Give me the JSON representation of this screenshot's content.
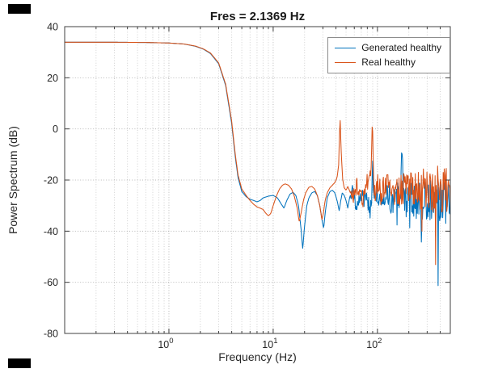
{
  "title": "Fres = 2.1369 Hz",
  "chart_data": {
    "type": "line",
    "title": "Fres = 2.1369 Hz",
    "xlabel": "Frequency (Hz)",
    "ylabel": "Power Spectrum (dB)",
    "x_scale": "log",
    "xlim": [
      0.1,
      500
    ],
    "ylim": [
      -80,
      40
    ],
    "y_ticks": [
      40,
      20,
      0,
      -20,
      -40,
      -60,
      -80
    ],
    "x_major_ticks": [
      1,
      10,
      100
    ],
    "x_major_tick_labels": [
      "10^0",
      "10^1",
      "10^2"
    ],
    "grid": "dotted, with log minor vertical gridlines",
    "legend_position": "northeast",
    "axis_color": "#404040",
    "grid_color": "#b8b8b8",
    "series": [
      {
        "name": "Generated healthy",
        "color": "#0072BD",
        "anchors": [
          [
            0.1,
            33.9
          ],
          [
            0.3,
            33.9
          ],
          [
            0.6,
            33.8
          ],
          [
            1.0,
            33.6
          ],
          [
            1.4,
            33.2
          ],
          [
            1.8,
            32.3
          ],
          [
            2.14,
            31.2
          ],
          [
            2.5,
            29.5
          ],
          [
            3.0,
            25.5
          ],
          [
            3.5,
            17
          ],
          [
            4.0,
            2
          ],
          [
            4.3,
            -10
          ],
          [
            4.6,
            -19
          ],
          [
            5.0,
            -24.5
          ],
          [
            5.5,
            -26.5
          ],
          [
            6,
            -27.5
          ],
          [
            6.5,
            -28
          ],
          [
            7,
            -28.5
          ],
          [
            7.5,
            -28
          ],
          [
            8,
            -27
          ],
          [
            9,
            -26.3
          ],
          [
            10,
            -26
          ],
          [
            11,
            -27
          ],
          [
            12,
            -29.5
          ],
          [
            12.7,
            -31
          ],
          [
            13.5,
            -28
          ],
          [
            14.5,
            -25.5
          ],
          [
            15.5,
            -24.8
          ],
          [
            16.5,
            -26
          ],
          [
            17.5,
            -30
          ],
          [
            18.5,
            -39
          ],
          [
            19.2,
            -47
          ],
          [
            20,
            -38
          ],
          [
            21,
            -30
          ],
          [
            22,
            -27
          ],
          [
            23.5,
            -25
          ],
          [
            25,
            -24.5
          ],
          [
            26.5,
            -26
          ],
          [
            28,
            -30
          ],
          [
            29.5,
            -36
          ],
          [
            30.5,
            -39
          ],
          [
            31.5,
            -33
          ],
          [
            33,
            -27
          ],
          [
            35,
            -24.5
          ],
          [
            37,
            -24
          ],
          [
            39,
            -25
          ],
          [
            41,
            -28
          ],
          [
            43,
            -32
          ],
          [
            44.5,
            -28
          ],
          [
            46,
            -25
          ],
          [
            48,
            -26
          ],
          [
            50,
            -28
          ],
          [
            52,
            -31
          ],
          [
            54,
            -27
          ],
          [
            57,
            -24
          ],
          [
            60,
            -27
          ],
          [
            63,
            -31
          ],
          [
            66,
            -28
          ],
          [
            70,
            -25
          ],
          [
            74,
            -28
          ],
          [
            78,
            -26
          ],
          [
            82,
            -30
          ],
          [
            85,
            -33
          ],
          [
            88,
            -26
          ],
          [
            90,
            -10
          ],
          [
            91.5,
            -27
          ],
          [
            94,
            -30
          ],
          [
            97,
            -27
          ],
          [
            100,
            -25
          ],
          [
            105,
            -27
          ],
          [
            110,
            -30
          ],
          [
            115,
            -26
          ],
          [
            120,
            -24
          ],
          [
            130,
            -27
          ],
          [
            140,
            -29
          ],
          [
            150,
            -26
          ],
          [
            160,
            -27
          ],
          [
            168,
            -20
          ],
          [
            172,
            -7
          ],
          [
            176,
            -20
          ],
          [
            182,
            -27
          ],
          [
            190,
            -28
          ],
          [
            200,
            -27
          ],
          [
            215,
            -26
          ],
          [
            230,
            -28
          ],
          [
            250,
            -27
          ],
          [
            270,
            -29
          ],
          [
            290,
            -27
          ],
          [
            310,
            -30
          ],
          [
            330,
            -28
          ],
          [
            350,
            -31
          ],
          [
            375,
            -28
          ],
          [
            400,
            -29
          ],
          [
            430,
            -28
          ],
          [
            460,
            -30
          ],
          [
            500,
            -27
          ]
        ]
      },
      {
        "name": "Real healthy",
        "color": "#D95319",
        "anchors": [
          [
            0.1,
            33.9
          ],
          [
            0.3,
            33.9
          ],
          [
            0.6,
            33.8
          ],
          [
            1.0,
            33.6
          ],
          [
            1.4,
            33.2
          ],
          [
            1.8,
            32.4
          ],
          [
            2.14,
            31.3
          ],
          [
            2.5,
            29.7
          ],
          [
            3.0,
            25.8
          ],
          [
            3.5,
            17.5
          ],
          [
            4.0,
            3
          ],
          [
            4.3,
            -9
          ],
          [
            4.6,
            -18
          ],
          [
            5.0,
            -23.5
          ],
          [
            5.5,
            -26
          ],
          [
            6,
            -28
          ],
          [
            6.5,
            -29.5
          ],
          [
            7,
            -30.5
          ],
          [
            7.5,
            -31
          ],
          [
            8,
            -31.5
          ],
          [
            8.5,
            -33
          ],
          [
            9,
            -34
          ],
          [
            9.5,
            -33
          ],
          [
            10,
            -30
          ],
          [
            10.8,
            -26
          ],
          [
            11.5,
            -23.5
          ],
          [
            12.3,
            -22
          ],
          [
            13,
            -21.5
          ],
          [
            14,
            -22
          ],
          [
            15,
            -23.5
          ],
          [
            16,
            -26.5
          ],
          [
            17,
            -31
          ],
          [
            17.8,
            -36.5
          ],
          [
            18.5,
            -33
          ],
          [
            19.5,
            -28
          ],
          [
            20.5,
            -25
          ],
          [
            22,
            -22.8
          ],
          [
            23.5,
            -22.5
          ],
          [
            25,
            -23.5
          ],
          [
            26.5,
            -26
          ],
          [
            28,
            -30
          ],
          [
            29.3,
            -35.5
          ],
          [
            30.3,
            -33
          ],
          [
            31.5,
            -28
          ],
          [
            33,
            -25
          ],
          [
            35,
            -23
          ],
          [
            37,
            -22
          ],
          [
            39,
            -21
          ],
          [
            41,
            -19
          ],
          [
            42.5,
            -14
          ],
          [
            43.8,
            5
          ],
          [
            45,
            -10
          ],
          [
            46.5,
            -20
          ],
          [
            48,
            -23
          ],
          [
            50,
            -24
          ],
          [
            52,
            -22.5
          ],
          [
            55,
            -25
          ],
          [
            58,
            -27
          ],
          [
            61,
            -24
          ],
          [
            64,
            -22
          ],
          [
            68,
            -25
          ],
          [
            72,
            -28
          ],
          [
            76,
            -24
          ],
          [
            80,
            -21
          ],
          [
            84,
            -19
          ],
          [
            87,
            -15
          ],
          [
            89.3,
            4
          ],
          [
            91,
            -14
          ],
          [
            93,
            -22
          ],
          [
            96,
            -25
          ],
          [
            100,
            -22
          ],
          [
            105,
            -24
          ],
          [
            110,
            -26
          ],
          [
            115,
            -23
          ],
          [
            120,
            -22
          ],
          [
            130,
            -24
          ],
          [
            140,
            -25
          ],
          [
            150,
            -23
          ],
          [
            160,
            -25
          ],
          [
            170,
            -23
          ],
          [
            180,
            -24
          ],
          [
            190,
            -22
          ],
          [
            200,
            -23
          ],
          [
            215,
            -24
          ],
          [
            230,
            -22
          ],
          [
            250,
            -24
          ],
          [
            270,
            -23
          ],
          [
            290,
            -25
          ],
          [
            310,
            -23
          ],
          [
            330,
            -24
          ],
          [
            350,
            -25
          ],
          [
            375,
            -23
          ],
          [
            400,
            -24
          ],
          [
            430,
            -23
          ],
          [
            460,
            -24
          ],
          [
            500,
            -22
          ]
        ]
      }
    ],
    "noise": {
      "start_hz": 55,
      "seed": 20240616,
      "amp_start": 2.5,
      "amp_end": 10,
      "dip_start_hz": 140,
      "dip_prob": 0.05,
      "dip_extra_max": 28,
      "floor": -66
    }
  }
}
